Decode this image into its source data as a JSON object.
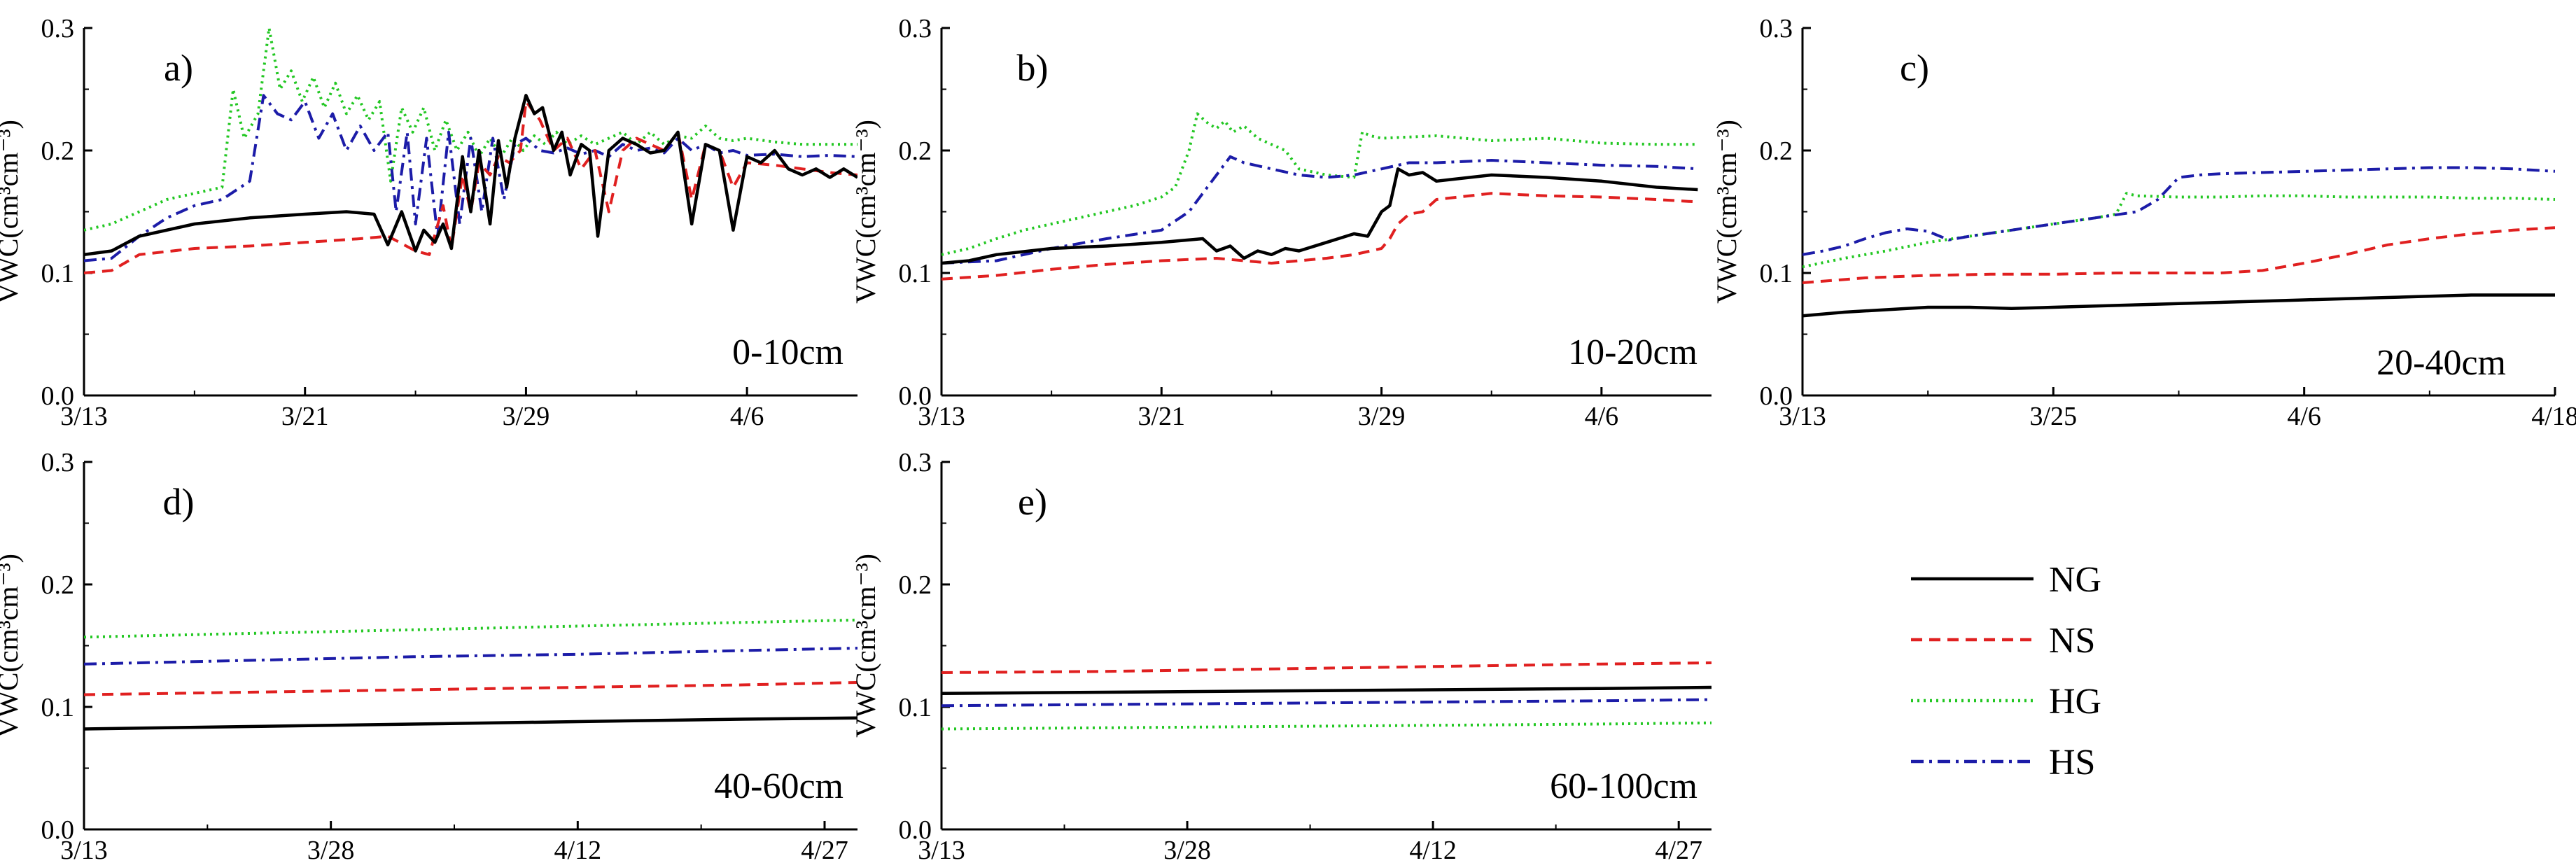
{
  "figure": {
    "legend": [
      {
        "key": "NG",
        "label": "NG",
        "color": "#000000",
        "dash": "solid"
      },
      {
        "key": "NS",
        "label": "NS",
        "color": "#e02020",
        "dash": "dashed"
      },
      {
        "key": "HG",
        "label": "HG",
        "color": "#22c722",
        "dash": "dotted"
      },
      {
        "key": "HS",
        "label": "HS",
        "color": "#1c1ca8",
        "dash": "dashdot"
      }
    ]
  },
  "chart_data": [
    {
      "type": "line",
      "panel": "a)",
      "depth": "0-10cm",
      "ylabel": "VWC(cm³cm⁻³)",
      "ylim": [
        0,
        0.3
      ],
      "yticks": [
        "0.0",
        "0.1",
        "0.2",
        "0.3"
      ],
      "xlim": [
        0,
        28
      ],
      "xticks": [
        0,
        8,
        16,
        24
      ],
      "xtick_labels": [
        "3/13",
        "3/21",
        "3/29",
        "4/6"
      ],
      "series": [
        {
          "name": "NG",
          "x": [
            0,
            1,
            2,
            4,
            6,
            8,
            9.5,
            10.5,
            11,
            11.5,
            12,
            12.3,
            12.7,
            13,
            13.3,
            13.7,
            14,
            14.3,
            14.7,
            15,
            15.3,
            15.6,
            16,
            16.3,
            16.6,
            17,
            17.3,
            17.6,
            18,
            18.3,
            18.6,
            19,
            19.5,
            20,
            20.5,
            21,
            21.5,
            22,
            22.5,
            23,
            23.5,
            24,
            24.5,
            25,
            25.5,
            26,
            26.5,
            27,
            27.5,
            28
          ],
          "y": [
            0.115,
            0.118,
            0.13,
            0.14,
            0.145,
            0.148,
            0.15,
            0.148,
            0.123,
            0.15,
            0.118,
            0.135,
            0.125,
            0.14,
            0.12,
            0.195,
            0.15,
            0.2,
            0.14,
            0.208,
            0.17,
            0.21,
            0.245,
            0.23,
            0.235,
            0.2,
            0.215,
            0.18,
            0.205,
            0.2,
            0.13,
            0.2,
            0.21,
            0.205,
            0.198,
            0.2,
            0.215,
            0.14,
            0.205,
            0.2,
            0.135,
            0.195,
            0.19,
            0.2,
            0.185,
            0.18,
            0.185,
            0.178,
            0.185,
            0.178
          ]
        },
        {
          "name": "NS",
          "x": [
            0,
            1,
            2,
            4,
            6,
            8,
            10,
            11,
            12,
            12.5,
            13,
            13.3,
            13.7,
            14,
            14.3,
            14.7,
            15,
            15.4,
            15.8,
            16,
            16.5,
            17,
            17.5,
            18,
            18.5,
            19,
            19.5,
            20,
            20.5,
            21,
            21.5,
            22,
            22.5,
            23,
            23.5,
            24,
            25,
            26,
            27,
            28
          ],
          "y": [
            0.1,
            0.102,
            0.115,
            0.12,
            0.122,
            0.125,
            0.128,
            0.13,
            0.118,
            0.115,
            0.155,
            0.12,
            0.18,
            0.15,
            0.19,
            0.18,
            0.195,
            0.19,
            0.2,
            0.24,
            0.225,
            0.2,
            0.21,
            0.185,
            0.2,
            0.15,
            0.2,
            0.21,
            0.205,
            0.2,
            0.215,
            0.16,
            0.205,
            0.2,
            0.17,
            0.19,
            0.188,
            0.185,
            0.182,
            0.18
          ]
        },
        {
          "name": "HG",
          "x": [
            0,
            1,
            2,
            3,
            4,
            5,
            5.4,
            5.8,
            6.3,
            6.7,
            7.1,
            7.5,
            7.9,
            8.3,
            8.7,
            9.1,
            9.5,
            9.9,
            10.3,
            10.7,
            11.1,
            11.5,
            11.9,
            12.3,
            12.7,
            13.1,
            13.5,
            13.9,
            14.3,
            14.7,
            15.1,
            15.5,
            15.9,
            16.3,
            16.7,
            17.1,
            17.5,
            18,
            18.5,
            19,
            19.5,
            20,
            20.5,
            21,
            21.5,
            22,
            22.5,
            23,
            23.5,
            24,
            25,
            26,
            27,
            28
          ],
          "y": [
            0.135,
            0.14,
            0.15,
            0.16,
            0.165,
            0.17,
            0.25,
            0.21,
            0.23,
            0.3,
            0.25,
            0.265,
            0.24,
            0.26,
            0.235,
            0.255,
            0.23,
            0.245,
            0.225,
            0.24,
            0.175,
            0.235,
            0.215,
            0.235,
            0.2,
            0.225,
            0.2,
            0.215,
            0.195,
            0.21,
            0.195,
            0.21,
            0.2,
            0.212,
            0.205,
            0.215,
            0.205,
            0.212,
            0.205,
            0.21,
            0.215,
            0.205,
            0.215,
            0.205,
            0.212,
            0.21,
            0.22,
            0.21,
            0.208,
            0.21,
            0.207,
            0.205,
            0.205,
            0.205
          ]
        },
        {
          "name": "HS",
          "x": [
            0,
            1,
            2,
            3,
            4,
            5,
            6,
            6.5,
            7,
            7.5,
            8,
            8.5,
            9,
            9.5,
            10,
            10.5,
            11,
            11.3,
            11.7,
            12,
            12.4,
            12.8,
            13.2,
            13.6,
            14,
            14.4,
            14.8,
            15.2,
            15.6,
            16,
            16.5,
            17,
            17.5,
            18,
            18.5,
            19,
            19.5,
            20,
            20.5,
            21,
            21.5,
            22,
            22.5,
            23,
            23.5,
            24,
            25,
            26,
            27,
            28
          ],
          "y": [
            0.11,
            0.112,
            0.13,
            0.145,
            0.155,
            0.16,
            0.175,
            0.245,
            0.23,
            0.225,
            0.24,
            0.21,
            0.23,
            0.2,
            0.22,
            0.2,
            0.215,
            0.15,
            0.215,
            0.14,
            0.21,
            0.13,
            0.215,
            0.14,
            0.21,
            0.15,
            0.21,
            0.16,
            0.205,
            0.21,
            0.2,
            0.198,
            0.202,
            0.197,
            0.2,
            0.195,
            0.205,
            0.2,
            0.202,
            0.198,
            0.21,
            0.2,
            0.205,
            0.198,
            0.2,
            0.196,
            0.197,
            0.195,
            0.196,
            0.195
          ]
        }
      ]
    },
    {
      "type": "line",
      "panel": "b)",
      "depth": "10-20cm",
      "ylabel": "VWC(cm³cm⁻³)",
      "ylim": [
        0,
        0.3
      ],
      "yticks": [
        "0.0",
        "0.1",
        "0.2",
        "0.3"
      ],
      "xlim": [
        0,
        28
      ],
      "xticks": [
        0,
        8,
        16,
        24
      ],
      "xtick_labels": [
        "3/13",
        "3/21",
        "3/29",
        "4/6"
      ],
      "series": [
        {
          "name": "NG",
          "x": [
            0,
            1,
            2,
            4,
            6,
            8,
            9,
            9.5,
            10,
            10.5,
            11,
            11.5,
            12,
            12.5,
            13,
            14,
            15,
            15.5,
            16,
            16.3,
            16.6,
            17,
            17.5,
            18,
            20,
            22,
            24,
            26,
            27.5
          ],
          "y": [
            0.108,
            0.11,
            0.115,
            0.12,
            0.122,
            0.125,
            0.127,
            0.128,
            0.118,
            0.122,
            0.112,
            0.118,
            0.115,
            0.12,
            0.118,
            0.125,
            0.132,
            0.13,
            0.15,
            0.155,
            0.185,
            0.18,
            0.182,
            0.175,
            0.18,
            0.178,
            0.175,
            0.17,
            0.168
          ]
        },
        {
          "name": "NS",
          "x": [
            0,
            2,
            4,
            6,
            8,
            10,
            12,
            14,
            15,
            16,
            16.3,
            16.6,
            17,
            17.5,
            18,
            20,
            22,
            24,
            26,
            27.5
          ],
          "y": [
            0.095,
            0.098,
            0.103,
            0.107,
            0.11,
            0.112,
            0.108,
            0.112,
            0.115,
            0.12,
            0.128,
            0.14,
            0.148,
            0.15,
            0.16,
            0.165,
            0.163,
            0.162,
            0.16,
            0.158
          ]
        },
        {
          "name": "HG",
          "x": [
            0,
            1,
            2,
            3,
            4,
            5,
            6,
            7,
            8,
            8.5,
            9,
            9.3,
            9.7,
            10,
            10.3,
            10.6,
            11,
            11.5,
            12,
            12.5,
            13,
            14,
            15,
            15.3,
            15.6,
            16,
            18,
            20,
            22,
            24,
            26,
            27.5
          ],
          "y": [
            0.115,
            0.12,
            0.128,
            0.135,
            0.14,
            0.145,
            0.15,
            0.155,
            0.162,
            0.17,
            0.2,
            0.23,
            0.222,
            0.218,
            0.224,
            0.215,
            0.22,
            0.21,
            0.205,
            0.2,
            0.185,
            0.18,
            0.178,
            0.215,
            0.212,
            0.21,
            0.212,
            0.208,
            0.21,
            0.206,
            0.205,
            0.205
          ]
        },
        {
          "name": "HS",
          "x": [
            0,
            2,
            4,
            6,
            8,
            9,
            9.5,
            10,
            10.5,
            11,
            12,
            13,
            14,
            15,
            16,
            17,
            18,
            20,
            22,
            24,
            26,
            27.5
          ],
          "y": [
            0.108,
            0.11,
            0.12,
            0.128,
            0.135,
            0.15,
            0.165,
            0.18,
            0.195,
            0.19,
            0.185,
            0.18,
            0.178,
            0.18,
            0.185,
            0.19,
            0.19,
            0.192,
            0.19,
            0.188,
            0.187,
            0.185
          ]
        }
      ]
    },
    {
      "type": "line",
      "panel": "c)",
      "depth": "20-40cm",
      "ylabel": "VWC(cm³cm⁻³)",
      "ylim": [
        0,
        0.3
      ],
      "yticks": [
        "0.0",
        "0.1",
        "0.2",
        "0.3"
      ],
      "xlim": [
        0,
        36
      ],
      "xticks": [
        0,
        12,
        24,
        36
      ],
      "xtick_labels": [
        "3/13",
        "3/25",
        "4/6",
        "4/18"
      ],
      "series": [
        {
          "name": "NG",
          "x": [
            0,
            2,
            4,
            6,
            8,
            10,
            12,
            14,
            16,
            18,
            20,
            22,
            24,
            26,
            28,
            30,
            32,
            34,
            36
          ],
          "y": [
            0.065,
            0.068,
            0.07,
            0.072,
            0.072,
            0.071,
            0.072,
            0.073,
            0.074,
            0.075,
            0.076,
            0.077,
            0.078,
            0.079,
            0.08,
            0.081,
            0.082,
            0.082,
            0.082
          ]
        },
        {
          "name": "NS",
          "x": [
            0,
            3,
            6,
            9,
            12,
            15,
            18,
            20,
            22,
            24,
            26,
            28,
            30,
            32,
            34,
            36
          ],
          "y": [
            0.092,
            0.096,
            0.098,
            0.099,
            0.099,
            0.1,
            0.1,
            0.1,
            0.102,
            0.108,
            0.115,
            0.123,
            0.128,
            0.132,
            0.135,
            0.137
          ]
        },
        {
          "name": "HG",
          "x": [
            0,
            2,
            4,
            6,
            8,
            10,
            12,
            14,
            15,
            15.5,
            16,
            18,
            20,
            22,
            24,
            26,
            28,
            30,
            32,
            34,
            36
          ],
          "y": [
            0.105,
            0.112,
            0.118,
            0.125,
            0.13,
            0.135,
            0.14,
            0.145,
            0.148,
            0.165,
            0.163,
            0.162,
            0.162,
            0.163,
            0.163,
            0.162,
            0.162,
            0.162,
            0.161,
            0.161,
            0.16
          ]
        },
        {
          "name": "HS",
          "x": [
            0,
            1,
            2,
            3,
            4,
            5,
            6,
            7,
            8,
            10,
            12,
            14,
            16,
            17,
            18,
            19,
            20,
            22,
            24,
            26,
            28,
            30,
            32,
            34,
            36
          ],
          "y": [
            0.115,
            0.118,
            0.122,
            0.128,
            0.133,
            0.136,
            0.134,
            0.127,
            0.13,
            0.135,
            0.14,
            0.145,
            0.15,
            0.16,
            0.178,
            0.18,
            0.181,
            0.182,
            0.183,
            0.184,
            0.185,
            0.186,
            0.186,
            0.185,
            0.183
          ]
        }
      ]
    },
    {
      "type": "line",
      "panel": "d)",
      "depth": "40-60cm",
      "ylabel": "VWC(cm³cm⁻³)",
      "ylim": [
        0,
        0.3
      ],
      "yticks": [
        "0.0",
        "0.1",
        "0.2",
        "0.3"
      ],
      "xlim": [
        0,
        47
      ],
      "xticks": [
        0,
        15,
        30,
        45
      ],
      "xtick_labels": [
        "3/13",
        "3/28",
        "4/12",
        "4/27"
      ],
      "series": [
        {
          "name": "NG",
          "x": [
            0,
            10,
            20,
            30,
            40,
            47
          ],
          "y": [
            0.082,
            0.084,
            0.086,
            0.088,
            0.09,
            0.091
          ]
        },
        {
          "name": "NS",
          "x": [
            0,
            10,
            20,
            30,
            40,
            47
          ],
          "y": [
            0.11,
            0.112,
            0.114,
            0.116,
            0.118,
            0.12
          ]
        },
        {
          "name": "HG",
          "x": [
            0,
            10,
            20,
            30,
            40,
            47
          ],
          "y": [
            0.157,
            0.16,
            0.163,
            0.166,
            0.169,
            0.171
          ]
        },
        {
          "name": "HS",
          "x": [
            0,
            10,
            20,
            30,
            40,
            47
          ],
          "y": [
            0.135,
            0.138,
            0.141,
            0.143,
            0.146,
            0.148
          ]
        }
      ]
    },
    {
      "type": "line",
      "panel": "e)",
      "depth": "60-100cm",
      "ylabel": "VWC(cm³cm⁻³)",
      "ylim": [
        0,
        0.3
      ],
      "yticks": [
        "0.0",
        "0.1",
        "0.2",
        "0.3"
      ],
      "xlim": [
        0,
        47
      ],
      "xticks": [
        0,
        15,
        30,
        45
      ],
      "xtick_labels": [
        "3/13",
        "3/28",
        "4/12",
        "4/27"
      ],
      "series": [
        {
          "name": "NG",
          "x": [
            0,
            10,
            20,
            30,
            40,
            47
          ],
          "y": [
            0.111,
            0.112,
            0.113,
            0.114,
            0.115,
            0.116
          ]
        },
        {
          "name": "NS",
          "x": [
            0,
            10,
            20,
            30,
            40,
            47
          ],
          "y": [
            0.128,
            0.129,
            0.131,
            0.133,
            0.135,
            0.136
          ]
        },
        {
          "name": "HG",
          "x": [
            0,
            10,
            20,
            30,
            40,
            47
          ],
          "y": [
            0.082,
            0.083,
            0.084,
            0.085,
            0.086,
            0.087
          ]
        },
        {
          "name": "HS",
          "x": [
            0,
            10,
            20,
            30,
            40,
            47
          ],
          "y": [
            0.101,
            0.102,
            0.103,
            0.104,
            0.105,
            0.106
          ]
        }
      ]
    }
  ]
}
